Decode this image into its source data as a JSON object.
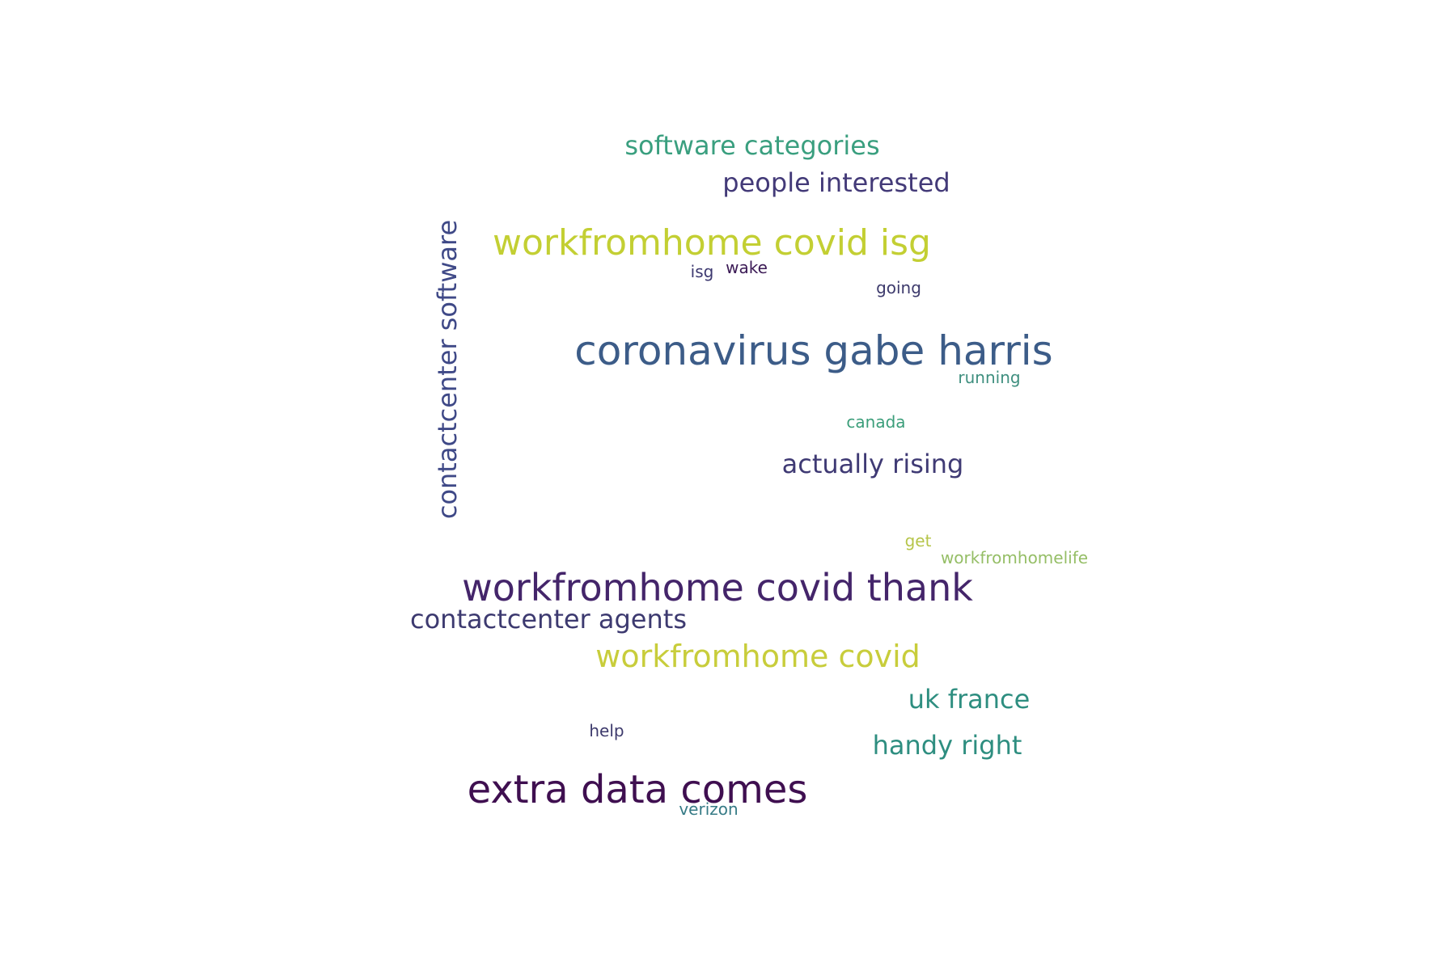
{
  "words": [
    {
      "text": "software categories",
      "color": "#3a9f7f"
    },
    {
      "text": "people interested",
      "color": "#433a78"
    },
    {
      "text": "workfromhome covid isg",
      "color": "#c3cf33"
    },
    {
      "text": "contactcenter software",
      "color": "#3f4987"
    },
    {
      "text": "isg",
      "color": "#3d3970"
    },
    {
      "text": "wake",
      "color": "#3b1a55"
    },
    {
      "text": "going",
      "color": "#3d3a6c"
    },
    {
      "text": "coronavirus gabe harris",
      "color": "#3c5c88"
    },
    {
      "text": "running",
      "color": "#3f8f7f"
    },
    {
      "text": "canada",
      "color": "#3b9e7a"
    },
    {
      "text": "actually rising",
      "color": "#3f3a74"
    },
    {
      "text": "get",
      "color": "#b6c54a"
    },
    {
      "text": "workfromhomelife",
      "color": "#95be66"
    },
    {
      "text": "workfromhome covid thank",
      "color": "#44256a"
    },
    {
      "text": "contactcenter agents",
      "color": "#3d3a70"
    },
    {
      "text": "workfromhome covid",
      "color": "#c8cd3b"
    },
    {
      "text": "uk france",
      "color": "#2e8e80"
    },
    {
      "text": "help",
      "color": "#3d3a6c"
    },
    {
      "text": "handy right",
      "color": "#2e8e80"
    },
    {
      "text": "extra data comes",
      "color": "#3f0f50"
    },
    {
      "text": "verizon",
      "color": "#367b86"
    }
  ]
}
